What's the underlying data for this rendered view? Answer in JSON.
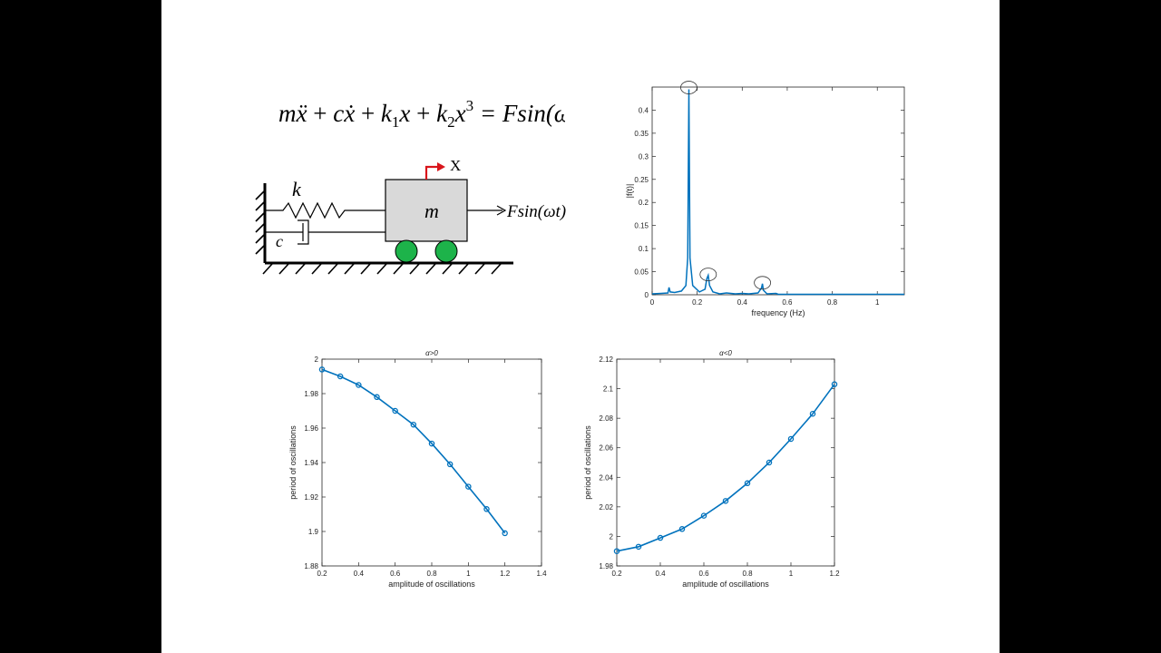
{
  "equation": {
    "lhs_m": "m",
    "xdd": "ẍ",
    "plus1": " + ",
    "c": "c",
    "xd": "ẋ",
    "plus2": " + ",
    "k1": "k",
    "sub1": "1",
    "x1": "x",
    "plus3": " + ",
    "k2": "k",
    "sub2": "2",
    "x3": "x",
    "sup3": "3",
    "rhs": " = Fsin(ωt)"
  },
  "diagram": {
    "spring_label": "k",
    "damper_label": "c",
    "mass_label": "m",
    "displacement_label": "X",
    "force_label": "Fsin(ωt)",
    "colors": {
      "arrow": "#d9151b",
      "wheels": "#1db34a",
      "mass_fill": "#d9d9d9"
    }
  },
  "chart_data": [
    {
      "type": "line",
      "title": "",
      "xlabel": "frequency (Hz)",
      "ylabel": "|f(t)|",
      "xlim": [
        0,
        1.12
      ],
      "ylim": [
        0,
        0.45
      ],
      "xticks": [
        0,
        0.2,
        0.4,
        0.6,
        0.8,
        1
      ],
      "xtick_labels": [
        "0",
        "0.2",
        "0.4",
        "0.6",
        "0.8",
        "1"
      ],
      "yticks": [
        0,
        0.05,
        0.1,
        0.15,
        0.2,
        0.25,
        0.3,
        0.35,
        0.4
      ],
      "ytick_labels": [
        "0",
        "0.05",
        "0.1",
        "0.15",
        "0.2",
        "0.25",
        "0.3",
        "0.35",
        "0.4"
      ],
      "color": "#0072bd",
      "x": [
        0,
        0.04,
        0.07,
        0.075,
        0.08,
        0.1,
        0.13,
        0.15,
        0.158,
        0.163,
        0.168,
        0.18,
        0.21,
        0.235,
        0.243,
        0.249,
        0.255,
        0.27,
        0.3,
        0.33,
        0.37,
        0.4,
        0.43,
        0.47,
        0.486,
        0.49,
        0.494,
        0.51,
        0.55,
        0.56,
        0.6,
        0.7,
        0.8,
        0.9,
        1.0,
        1.12
      ],
      "y": [
        0.002,
        0.003,
        0.004,
        0.016,
        0.006,
        0.005,
        0.008,
        0.02,
        0.08,
        0.445,
        0.08,
        0.02,
        0.006,
        0.012,
        0.035,
        0.042,
        0.02,
        0.006,
        0.002,
        0.004,
        0.002,
        0.003,
        0.002,
        0.004,
        0.015,
        0.024,
        0.01,
        0.002,
        0.003,
        0.001,
        0.001,
        0.001,
        0.001,
        0.001,
        0.001,
        0.001
      ],
      "circled_peaks": [
        [
          0.163,
          0.445
        ],
        [
          0.249,
          0.04
        ],
        [
          0.49,
          0.022
        ]
      ]
    },
    {
      "type": "line",
      "title": "α>0",
      "xlabel": "amplitude of oscillations",
      "ylabel": "period of oscillations",
      "xlim": [
        0.2,
        1.4
      ],
      "ylim": [
        1.88,
        2.0
      ],
      "xticks": [
        0.2,
        0.4,
        0.6,
        0.8,
        1,
        1.2,
        1.4
      ],
      "xtick_labels": [
        "0.2",
        "0.4",
        "0.6",
        "0.8",
        "1",
        "1.2",
        "1.4"
      ],
      "yticks": [
        1.88,
        1.9,
        1.92,
        1.94,
        1.96,
        1.98,
        2
      ],
      "ytick_labels": [
        "1.88",
        "1.9",
        "1.92",
        "1.94",
        "1.96",
        "1.98",
        "2"
      ],
      "color": "#0072bd",
      "x": [
        0.2,
        0.3,
        0.4,
        0.5,
        0.6,
        0.7,
        0.8,
        0.9,
        1.0,
        1.1,
        1.2
      ],
      "y": [
        1.994,
        1.99,
        1.985,
        1.978,
        1.97,
        1.962,
        1.951,
        1.939,
        1.926,
        1.913,
        1.899
      ]
    },
    {
      "type": "line",
      "title": "α<0",
      "xlabel": "amplitude of oscillations",
      "ylabel": "period of oscillations",
      "xlim": [
        0.2,
        1.2
      ],
      "ylim": [
        1.98,
        2.12
      ],
      "xticks": [
        0.2,
        0.4,
        0.6,
        0.8,
        1,
        1.2
      ],
      "xtick_labels": [
        "0.2",
        "0.4",
        "0.6",
        "0.8",
        "1",
        "1.2"
      ],
      "yticks": [
        1.98,
        2,
        2.02,
        2.04,
        2.06,
        2.08,
        2.1,
        2.12
      ],
      "ytick_labels": [
        "1.98",
        "2",
        "2.02",
        "2.04",
        "2.06",
        "2.08",
        "2.1",
        "2.12"
      ],
      "color": "#0072bd",
      "x": [
        0.2,
        0.3,
        0.4,
        0.5,
        0.6,
        0.7,
        0.8,
        0.9,
        1.0,
        1.1,
        1.2
      ],
      "y": [
        1.99,
        1.993,
        1.999,
        2.005,
        2.014,
        2.024,
        2.036,
        2.05,
        2.066,
        2.083,
        2.103
      ]
    }
  ]
}
